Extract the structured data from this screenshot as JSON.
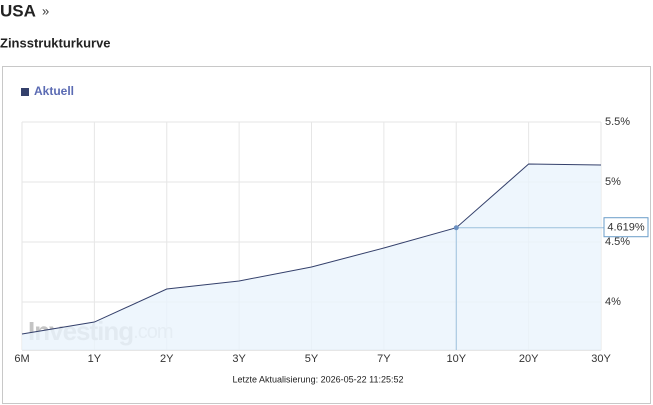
{
  "page_title": "USA",
  "page_title_link": "»",
  "section_title": "Zinsstrukturkurve",
  "chart_data": {
    "type": "line",
    "categories": [
      "6M",
      "1Y",
      "2Y",
      "3Y",
      "5Y",
      "7Y",
      "10Y",
      "20Y",
      "30Y"
    ],
    "series": [
      {
        "name": "Aktuell",
        "color": "#34406b",
        "values": [
          3.733,
          3.833,
          4.108,
          4.175,
          4.292,
          4.45,
          4.619,
          5.15,
          5.142
        ],
        "value_labels": [
          null,
          null,
          null,
          null,
          null,
          null,
          "4.619%",
          null,
          null
        ]
      }
    ],
    "ylim": [
      3.6,
      5.5
    ],
    "yticks": [
      {
        "value": 4,
        "label": "4%"
      },
      {
        "value": 4.5,
        "label": "4.5%"
      },
      {
        "value": 5,
        "label": "5%"
      },
      {
        "value": 5.5,
        "label": "5.5%"
      }
    ],
    "grid": true,
    "legend_position": "top-left",
    "watermark": "Investing",
    "watermark_suffix": ".com",
    "footer": "Letzte Aktualisierung: 2026-05-22 11:25:52"
  }
}
